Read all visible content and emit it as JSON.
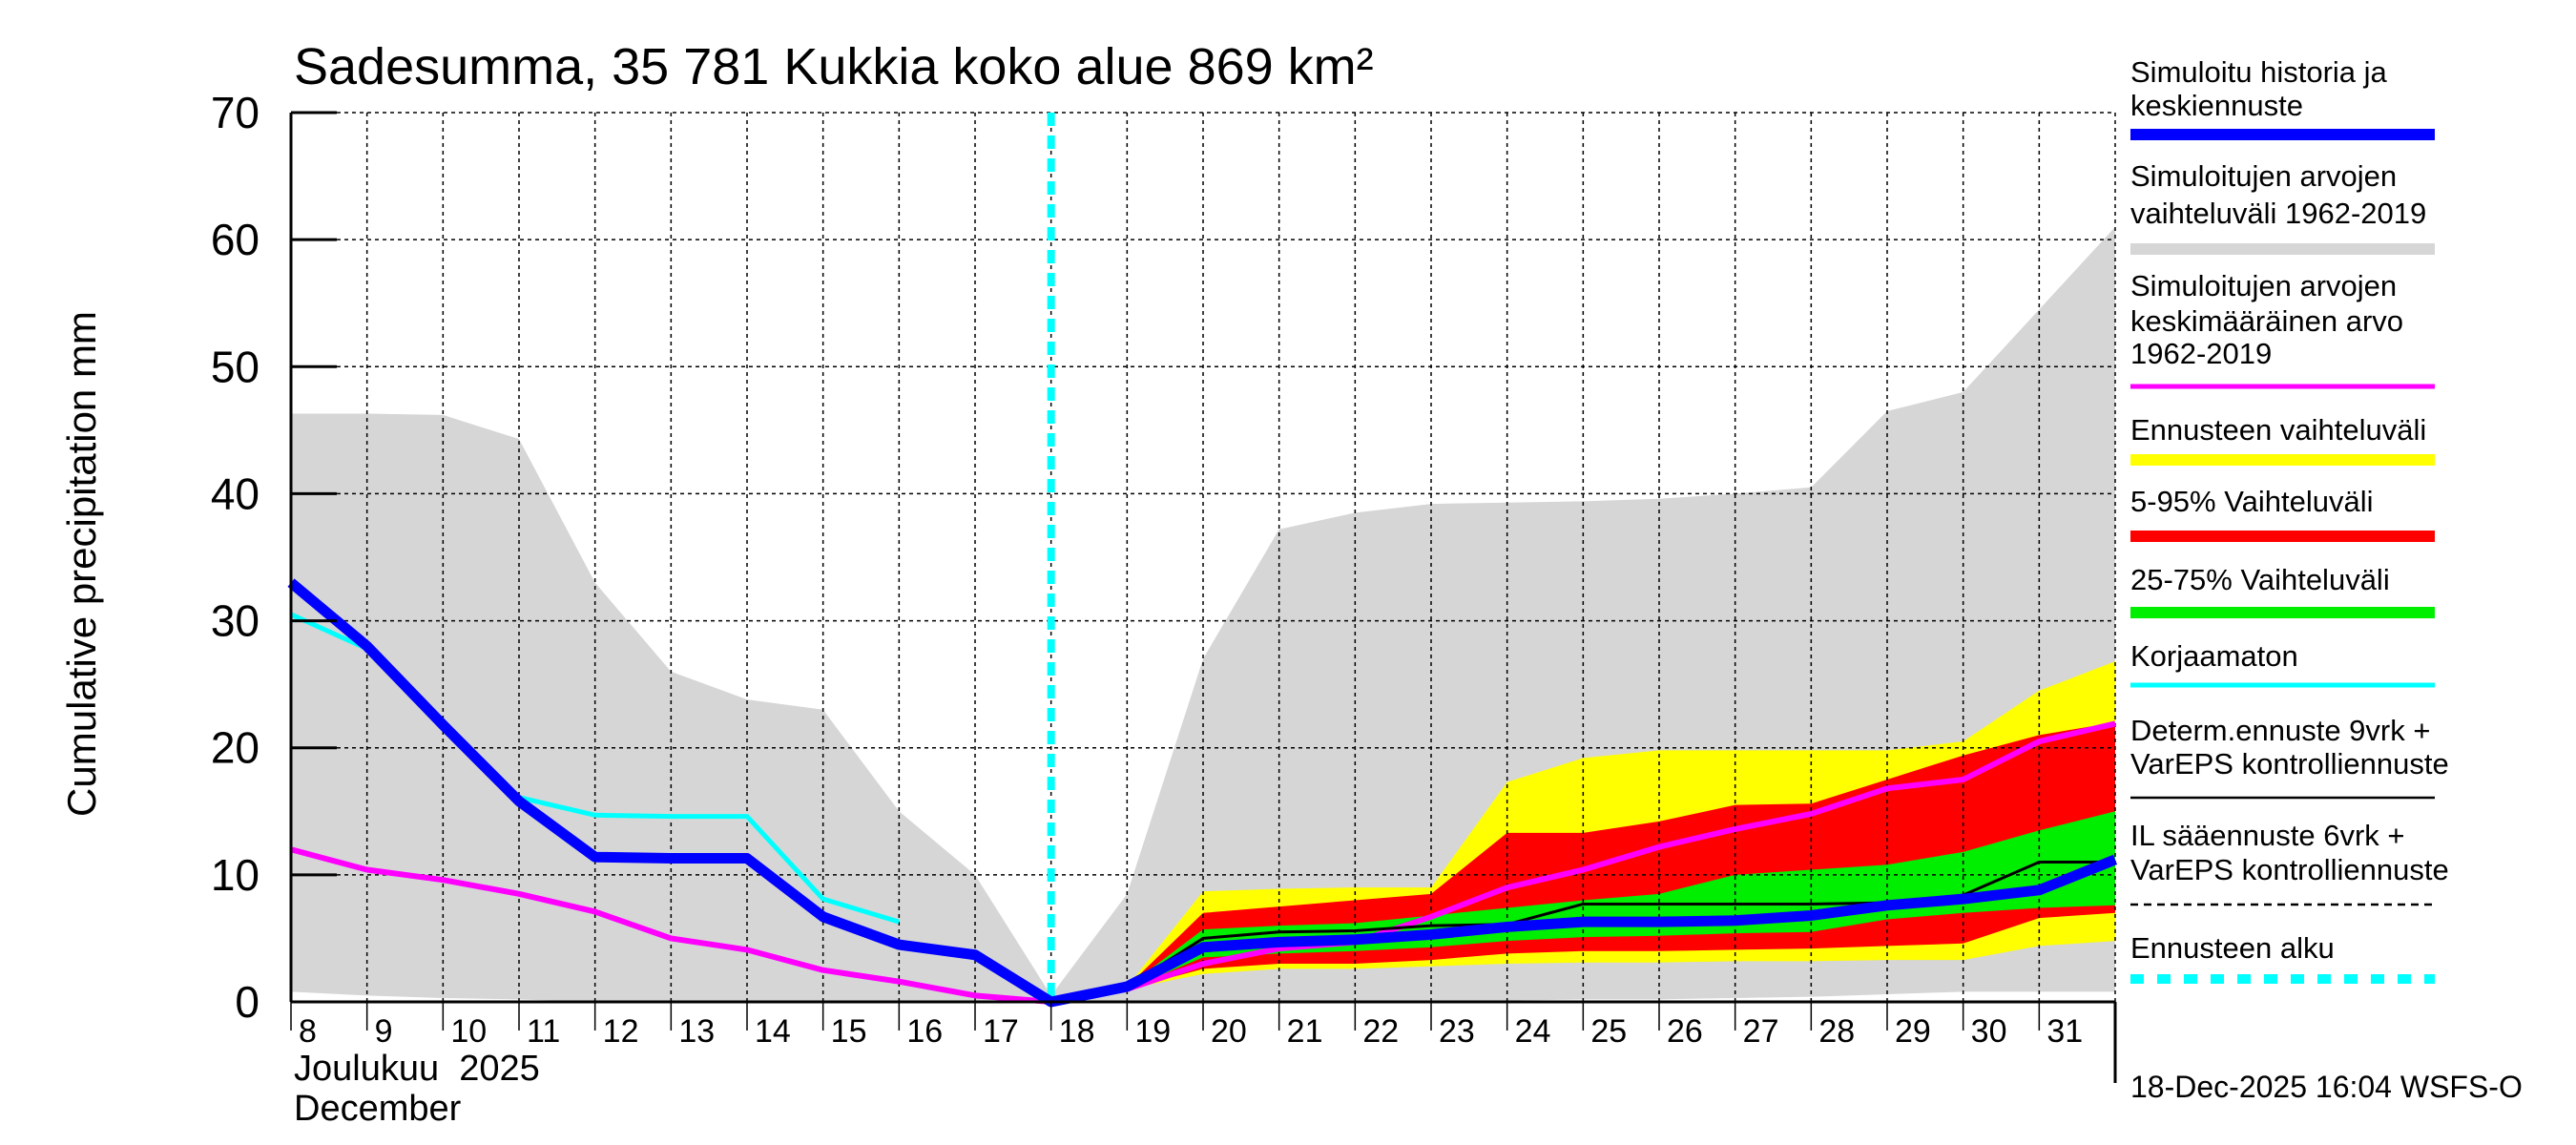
{
  "chart_data": {
    "type": "area",
    "title": "Sadesumma, 35 781 Kukkia koko alue 869 km²",
    "ylabel": "Cumulative precipitation   mm",
    "xlabel_lines": [
      "Joulukuu  2025",
      "December"
    ],
    "timestamp": "18-Dec-2025 16:04 WSFS-O",
    "ylim": [
      0,
      70
    ],
    "yticks": [
      0,
      10,
      20,
      30,
      40,
      50,
      60,
      70
    ],
    "xlim": [
      8,
      32
    ],
    "xticks": [
      8,
      9,
      10,
      11,
      12,
      13,
      14,
      15,
      16,
      17,
      18,
      19,
      20,
      21,
      22,
      23,
      24,
      25,
      26,
      27,
      28,
      29,
      30,
      31
    ],
    "grid": true,
    "forecast_start": 18,
    "colors": {
      "blue": "#0000ff",
      "grey": "#d6d6d6",
      "magenta": "#ff00ff",
      "yellow": "#ffff00",
      "red": "#ff0000",
      "green": "#00ee00",
      "cyan": "#00ffff",
      "black": "#000000"
    },
    "bands": [
      {
        "name": "Simuloitujen arvojen vaihteluväli 1962-2019",
        "color": "#d6d6d6",
        "x": [
          8,
          9,
          10,
          11,
          12,
          13,
          14,
          15,
          16,
          17,
          18,
          19,
          20,
          21,
          22,
          23,
          24,
          25,
          26,
          27,
          28,
          29,
          30,
          31,
          32
        ],
        "upper": [
          46.3,
          46.3,
          46.2,
          44.3,
          33,
          26,
          23.8,
          23,
          15,
          10,
          0.5,
          8.5,
          27,
          37.2,
          38.5,
          39.2,
          39.3,
          39.4,
          39.6,
          40,
          40.5,
          46.5,
          48,
          54.5,
          61
        ],
        "lower": [
          0.8,
          0.5,
          0.3,
          0.2,
          0,
          0,
          0,
          0,
          0,
          0,
          0,
          0,
          0,
          0,
          0,
          0,
          0.1,
          0.2,
          0.2,
          0.3,
          0.4,
          0.6,
          0.8,
          0.8,
          0.8
        ]
      },
      {
        "name": "Ennusteen vaihteluväli",
        "color": "#ffff00",
        "x": [
          18,
          19,
          20,
          21,
          22,
          23,
          24,
          25,
          26,
          27,
          28,
          29,
          30,
          31,
          32
        ],
        "upper": [
          0,
          1.2,
          8.7,
          8.9,
          9,
          9,
          17.3,
          19.2,
          19.8,
          19.8,
          19.8,
          19.8,
          20.5,
          24.5,
          26.8
        ],
        "lower": [
          0,
          1,
          2.2,
          2.6,
          2.6,
          2.8,
          3,
          3.1,
          3.1,
          3.2,
          3.2,
          3.3,
          3.3,
          4.4,
          4.8
        ]
      },
      {
        "name": "5-95% Vaihteluväli",
        "color": "#ff0000",
        "x": [
          18,
          19,
          20,
          21,
          22,
          23,
          24,
          25,
          26,
          27,
          28,
          29,
          30,
          31,
          32
        ],
        "upper": [
          0,
          1.2,
          7,
          7.5,
          8,
          8.5,
          13.3,
          13.3,
          14.2,
          15.5,
          15.6,
          17.5,
          19.4,
          21,
          22
        ],
        "lower": [
          0,
          1,
          2.6,
          3,
          3,
          3.3,
          3.8,
          4,
          4,
          4.1,
          4.2,
          4.4,
          4.6,
          6.6,
          7
        ]
      },
      {
        "name": "25-75% Vaihteluväli",
        "color": "#00ee00",
        "x": [
          18,
          19,
          20,
          21,
          22,
          23,
          24,
          25,
          26,
          27,
          28,
          29,
          30,
          31,
          32
        ],
        "upper": [
          0,
          1.2,
          5.7,
          6,
          6.2,
          6.8,
          7.4,
          8,
          8.5,
          10,
          10.4,
          10.8,
          11.8,
          13.5,
          15
        ],
        "lower": [
          0,
          1,
          3.5,
          3.8,
          4,
          4.3,
          4.8,
          5.1,
          5.2,
          5.4,
          5.5,
          6.5,
          7,
          7.4,
          7.6
        ]
      }
    ],
    "series": [
      {
        "name": "Simuloitujen arvojen keskimääräinen arvo 1962-2019",
        "color": "#ff00ff",
        "width": 6,
        "x": [
          8,
          9,
          10,
          11,
          12,
          13,
          14,
          15,
          16,
          17,
          18,
          19,
          20,
          21,
          22,
          23,
          24,
          25,
          26,
          27,
          28,
          29,
          30,
          31,
          32
        ],
        "y": [
          12,
          10.4,
          9.6,
          8.5,
          7.1,
          5,
          4.1,
          2.5,
          1.6,
          0.5,
          0,
          1,
          3,
          4.2,
          4.7,
          6.7,
          9,
          10.4,
          12.2,
          13.6,
          14.8,
          16.8,
          17.5,
          20.5,
          21.9
        ]
      },
      {
        "name": "Korjaamaton",
        "color": "#00ffff",
        "width": 5,
        "x": [
          8,
          9,
          10,
          11,
          12,
          13,
          14,
          15,
          16
        ],
        "y": [
          30.5,
          27.8,
          21.5,
          16.1,
          14.7,
          14.6,
          14.6,
          8.1,
          6.3
        ]
      },
      {
        "name": "Determ.ennuste 9vrk + VarEPS kontrolliennuste",
        "color": "#000000",
        "width": 3,
        "x": [
          18,
          19,
          20,
          21,
          22,
          23,
          24,
          25,
          26,
          27,
          28,
          29,
          30,
          31,
          32
        ],
        "y": [
          0,
          1.2,
          5,
          5.5,
          5.6,
          6,
          6.1,
          7.7,
          7.7,
          7.7,
          7.7,
          7.8,
          8.4,
          11,
          11
        ]
      },
      {
        "name": "Simuloitu historia ja keskiennuste",
        "color": "#0000ff",
        "width": 11,
        "x": [
          8,
          9,
          10,
          11,
          12,
          13,
          14,
          15,
          16,
          17,
          18,
          19,
          20,
          21,
          22,
          23,
          24,
          25,
          26,
          27,
          28,
          29,
          30,
          31,
          32
        ],
        "y": [
          33,
          28,
          21.8,
          15.8,
          11.4,
          11.3,
          11.3,
          6.7,
          4.5,
          3.7,
          0,
          1.2,
          4.3,
          4.7,
          4.9,
          5.3,
          5.9,
          6.3,
          6.3,
          6.4,
          6.8,
          7.6,
          8.1,
          8.8,
          11.2
        ]
      }
    ],
    "legend": [
      {
        "lines": [
          "Simuloitu historia ja",
          "keskiennuste"
        ],
        "color": "#0000ff",
        "style": "thick"
      },
      {
        "lines": [
          "Simuloitujen arvojen",
          "vaihteluväli 1962-2019"
        ],
        "color": "#d6d6d6",
        "style": "thick"
      },
      {
        "lines": [
          "Simuloitujen arvojen",
          "keskimääräinen arvo",
          "   1962-2019"
        ],
        "color": "#ff00ff",
        "style": "medium"
      },
      {
        "lines": [
          "Ennusteen vaihteluväli"
        ],
        "color": "#ffff00",
        "style": "thick"
      },
      {
        "lines": [
          "5-95% Vaihteluväli"
        ],
        "color": "#ff0000",
        "style": "thick"
      },
      {
        "lines": [
          "25-75% Vaihteluväli"
        ],
        "color": "#00ee00",
        "style": "thick"
      },
      {
        "lines": [
          "Korjaamaton"
        ],
        "color": "#00ffff",
        "style": "medium"
      },
      {
        "lines": [
          "Determ.ennuste 9vrk +",
          "VarEPS kontrolliennuste"
        ],
        "color": "#000000",
        "style": "thin"
      },
      {
        "lines": [
          "IL sääennuste 6vrk  +",
          "  VarEPS kontrolliennuste"
        ],
        "color": "#000000",
        "style": "dashed"
      },
      {
        "lines": [
          "Ennusteen alku"
        ],
        "color": "#00ffff",
        "style": "dotted"
      }
    ],
    "legend_position": "right"
  }
}
